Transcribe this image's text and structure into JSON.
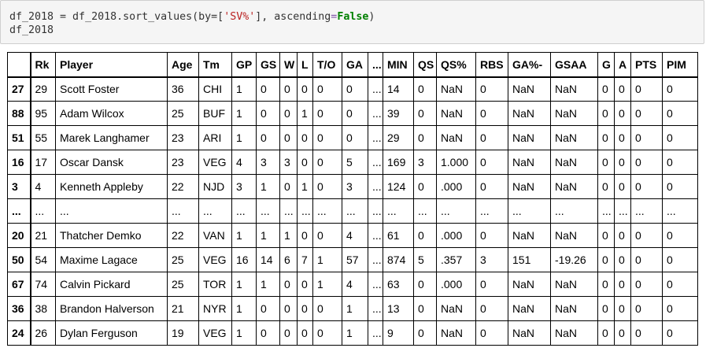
{
  "code": {
    "prefix": "df_2018 = df_2018.sort_values(by=[",
    "string_arg": "'SV%'",
    "middle": "], ascending",
    "equals": "=",
    "keyword": "False",
    "suffix": ")",
    "line2": "df_2018"
  },
  "table": {
    "columns": [
      "",
      "Rk",
      "Player",
      "Age",
      "Tm",
      "GP",
      "GS",
      "W",
      "L",
      "T/O",
      "GA",
      "...",
      "MIN",
      "QS",
      "QS%",
      "RBS",
      "GA%-",
      "GSAA",
      "G",
      "A",
      "PTS",
      "PIM"
    ],
    "rows": [
      [
        "27",
        "29",
        "Scott Foster",
        "36",
        "CHI",
        "1",
        "0",
        "0",
        "0",
        "0",
        "0",
        "...",
        "14",
        "0",
        "NaN",
        "0",
        "NaN",
        "NaN",
        "0",
        "0",
        "0",
        "0"
      ],
      [
        "88",
        "95",
        "Adam Wilcox",
        "25",
        "BUF",
        "1",
        "0",
        "0",
        "1",
        "0",
        "0",
        "...",
        "39",
        "0",
        "NaN",
        "0",
        "NaN",
        "NaN",
        "0",
        "0",
        "0",
        "0"
      ],
      [
        "51",
        "55",
        "Marek Langhamer",
        "23",
        "ARI",
        "1",
        "0",
        "0",
        "0",
        "0",
        "0",
        "...",
        "29",
        "0",
        "NaN",
        "0",
        "NaN",
        "NaN",
        "0",
        "0",
        "0",
        "0"
      ],
      [
        "16",
        "17",
        "Oscar Dansk",
        "23",
        "VEG",
        "4",
        "3",
        "3",
        "0",
        "0",
        "5",
        "...",
        "169",
        "3",
        "1.000",
        "0",
        "NaN",
        "NaN",
        "0",
        "0",
        "0",
        "0"
      ],
      [
        "3",
        "4",
        "Kenneth Appleby",
        "22",
        "NJD",
        "3",
        "1",
        "0",
        "1",
        "0",
        "3",
        "...",
        "124",
        "0",
        ".000",
        "0",
        "NaN",
        "NaN",
        "0",
        "0",
        "0",
        "0"
      ],
      [
        "...",
        "...",
        "...",
        "...",
        "...",
        "...",
        "...",
        "...",
        "...",
        "...",
        "...",
        "...",
        "...",
        "...",
        "...",
        "...",
        "...",
        "...",
        "...",
        "...",
        "...",
        "..."
      ],
      [
        "20",
        "21",
        "Thatcher Demko",
        "22",
        "VAN",
        "1",
        "1",
        "1",
        "0",
        "0",
        "4",
        "...",
        "61",
        "0",
        ".000",
        "0",
        "NaN",
        "NaN",
        "0",
        "0",
        "0",
        "0"
      ],
      [
        "50",
        "54",
        "Maxime Lagace",
        "25",
        "VEG",
        "16",
        "14",
        "6",
        "7",
        "1",
        "57",
        "...",
        "874",
        "5",
        ".357",
        "3",
        "151",
        "-19.26",
        "0",
        "0",
        "0",
        "0"
      ],
      [
        "67",
        "74",
        "Calvin Pickard",
        "25",
        "TOR",
        "1",
        "1",
        "0",
        "0",
        "1",
        "4",
        "...",
        "63",
        "0",
        ".000",
        "0",
        "NaN",
        "NaN",
        "0",
        "0",
        "0",
        "0"
      ],
      [
        "36",
        "38",
        "Brandon Halverson",
        "21",
        "NYR",
        "1",
        "0",
        "0",
        "0",
        "0",
        "1",
        "...",
        "13",
        "0",
        "NaN",
        "0",
        "NaN",
        "NaN",
        "0",
        "0",
        "0",
        "0"
      ],
      [
        "24",
        "26",
        "Dylan Ferguson",
        "19",
        "VEG",
        "1",
        "0",
        "0",
        "0",
        "0",
        "1",
        "...",
        "9",
        "0",
        "NaN",
        "0",
        "NaN",
        "NaN",
        "0",
        "0",
        "0",
        "0"
      ]
    ]
  },
  "colors": {
    "code_background": "#f5f5f5",
    "string": "#ba2121",
    "keyword": "#008000",
    "operator": "#7c4ea6"
  }
}
